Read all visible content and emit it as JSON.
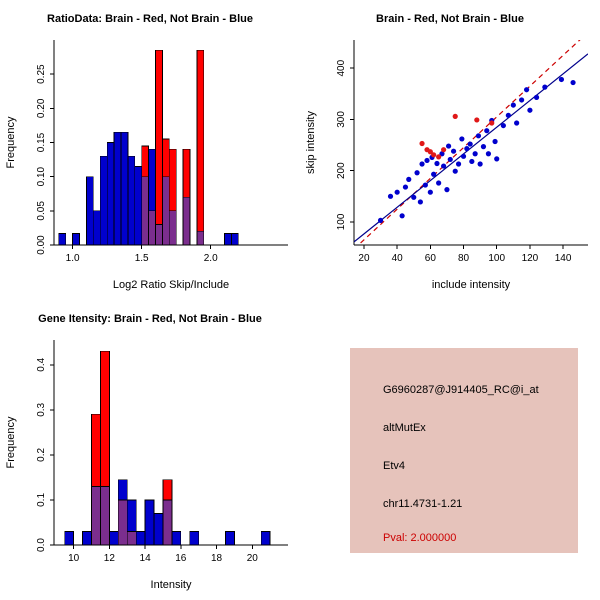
{
  "colors": {
    "histogram_blue": "#0000CD",
    "histogram_red": "#FF0000",
    "histogram_overlap": "#7B2E8E",
    "scatter_blue": "#0000CD",
    "scatter_red": "#E01818",
    "fit_line_red": "#CC0000",
    "fit_line_blue": "#00008B",
    "axis": "#000000"
  },
  "legend_meaning": {
    "red": "Brain",
    "blue": "Not Brain"
  },
  "info_box": {
    "bg": "#E6C3BB",
    "lines": [
      {
        "text": "G6960287@J914405_RC@i_at",
        "color": "#000000"
      },
      {
        "text": "altMutEx",
        "color": "#000000"
      },
      {
        "text": "Etv4",
        "color": "#000000"
      },
      {
        "text": "chr11.4731-1.21",
        "color": "#000000"
      },
      {
        "text": "Pval: 2.000000",
        "color": "#CC0000"
      }
    ]
  },
  "chart_data": [
    {
      "id": "ratio-hist",
      "type": "histogram",
      "title": "RatioData: Brain - Red, Not Brain - Blue",
      "xlabel": "Log2 Ratio Skip/Include",
      "ylabel": "Frequency",
      "xlim": [
        0.865,
        2.56
      ],
      "ylim": [
        0,
        0.3
      ],
      "xticks": [
        1.0,
        1.5,
        2.0
      ],
      "xtick_labels": [
        "1.0",
        "1.5",
        "2.0"
      ],
      "yticks": [
        0,
        0.05,
        0.1,
        0.15,
        0.2,
        0.25
      ],
      "ytick_labels": [
        "0.00",
        "0.05",
        "0.10",
        "0.15",
        "0.20",
        "0.25"
      ],
      "bin_width": 0.05,
      "bins_format": [
        "x_start",
        "not_brain_blue_freq",
        "brain_red_freq"
      ],
      "bins": [
        [
          0.9,
          0.017,
          0
        ],
        [
          1.0,
          0.017,
          0
        ],
        [
          1.1,
          0.1,
          0
        ],
        [
          1.15,
          0.05,
          0
        ],
        [
          1.2,
          0.13,
          0
        ],
        [
          1.25,
          0.15,
          0
        ],
        [
          1.3,
          0.165,
          0
        ],
        [
          1.35,
          0.165,
          0
        ],
        [
          1.4,
          0.13,
          0
        ],
        [
          1.45,
          0.115,
          0
        ],
        [
          1.5,
          0.1,
          0.145
        ],
        [
          1.55,
          0.14,
          0.05
        ],
        [
          1.6,
          0.03,
          0.285
        ],
        [
          1.65,
          0.1,
          0.155
        ],
        [
          1.7,
          0.05,
          0.14
        ],
        [
          1.8,
          0.07,
          0.14
        ],
        [
          1.9,
          0.02,
          0.285
        ],
        [
          2.1,
          0.017,
          0
        ],
        [
          2.15,
          0.017,
          0
        ]
      ]
    },
    {
      "id": "intensity-scatter",
      "type": "scatter",
      "title": "Brain - Red, Not Brain - Blue",
      "xlabel": "include intensity",
      "ylabel": "skip intensity",
      "xlim": [
        14,
        155
      ],
      "ylim": [
        55,
        455
      ],
      "xticks": [
        20,
        40,
        60,
        80,
        100,
        120,
        140
      ],
      "xtick_labels": [
        "20",
        "40",
        "60",
        "80",
        "100",
        "120",
        "140"
      ],
      "yticks": [
        100,
        200,
        300,
        400
      ],
      "ytick_labels": [
        "100",
        "200",
        "300",
        "400"
      ],
      "blue_points": [
        [
          30,
          103
        ],
        [
          36,
          150
        ],
        [
          40,
          158
        ],
        [
          43,
          112
        ],
        [
          45,
          168
        ],
        [
          47,
          183
        ],
        [
          50,
          148
        ],
        [
          52,
          196
        ],
        [
          54,
          139
        ],
        [
          55,
          213
        ],
        [
          57,
          172
        ],
        [
          58,
          220
        ],
        [
          60,
          158
        ],
        [
          61,
          226
        ],
        [
          62,
          193
        ],
        [
          64,
          214
        ],
        [
          65,
          176
        ],
        [
          67,
          233
        ],
        [
          68,
          209
        ],
        [
          70,
          163
        ],
        [
          71,
          248
        ],
        [
          72,
          222
        ],
        [
          74,
          238
        ],
        [
          75,
          199
        ],
        [
          77,
          213
        ],
        [
          79,
          262
        ],
        [
          80,
          228
        ],
        [
          82,
          243
        ],
        [
          84,
          252
        ],
        [
          85,
          218
        ],
        [
          87,
          233
        ],
        [
          89,
          268
        ],
        [
          90,
          213
        ],
        [
          92,
          247
        ],
        [
          94,
          278
        ],
        [
          95,
          233
        ],
        [
          97,
          298
        ],
        [
          99,
          257
        ],
        [
          100,
          223
        ],
        [
          104,
          288
        ],
        [
          107,
          308
        ],
        [
          110,
          328
        ],
        [
          112,
          293
        ],
        [
          115,
          338
        ],
        [
          118,
          358
        ],
        [
          120,
          318
        ],
        [
          124,
          343
        ],
        [
          129,
          363
        ],
        [
          139,
          378
        ],
        [
          146,
          372
        ]
      ],
      "red_points": [
        [
          55,
          253
        ],
        [
          58,
          241
        ],
        [
          60,
          237
        ],
        [
          62,
          231
        ],
        [
          65,
          227
        ],
        [
          68,
          241
        ],
        [
          75,
          306
        ],
        [
          88,
          299
        ],
        [
          97,
          293
        ]
      ],
      "fit_lines": [
        {
          "name": "brain-fit",
          "color": "#CC0000",
          "style": "dashed",
          "x1": 14,
          "y1": 47,
          "x2": 155,
          "y2": 470
        },
        {
          "name": "not-brain-fit",
          "color": "#00008B",
          "style": "solid",
          "x1": 14,
          "y1": 61,
          "x2": 155,
          "y2": 428
        }
      ]
    },
    {
      "id": "gene-hist",
      "type": "histogram",
      "title": "Gene Itensity: Brain - Red, Not Brain - Blue",
      "xlabel": "Intensity",
      "ylabel": "Frequency",
      "xlim": [
        8.9,
        22.0
      ],
      "ylim": [
        0,
        0.455
      ],
      "xticks": [
        10,
        12,
        14,
        16,
        18,
        20
      ],
      "xtick_labels": [
        "10",
        "12",
        "14",
        "16",
        "18",
        "20"
      ],
      "yticks": [
        0,
        0.1,
        0.2,
        0.3,
        0.4
      ],
      "ytick_labels": [
        "0.0",
        "0.1",
        "0.2",
        "0.3",
        "0.4"
      ],
      "bin_width": 0.5,
      "bins_format": [
        "x_start",
        "not_brain_blue_freq",
        "brain_red_freq"
      ],
      "bins": [
        [
          9.5,
          0.03,
          0
        ],
        [
          10.5,
          0.03,
          0
        ],
        [
          11.0,
          0.13,
          0.29
        ],
        [
          11.5,
          0.13,
          0.43
        ],
        [
          12.0,
          0.03,
          0
        ],
        [
          12.5,
          0.145,
          0.1
        ],
        [
          13.0,
          0.1,
          0.03
        ],
        [
          13.5,
          0.03,
          0
        ],
        [
          14.0,
          0.1,
          0
        ],
        [
          14.5,
          0.07,
          0
        ],
        [
          15.0,
          0.1,
          0.145
        ],
        [
          15.5,
          0.03,
          0
        ],
        [
          16.5,
          0.03,
          0
        ],
        [
          18.5,
          0.03,
          0
        ],
        [
          20.5,
          0.03,
          0
        ]
      ]
    }
  ]
}
